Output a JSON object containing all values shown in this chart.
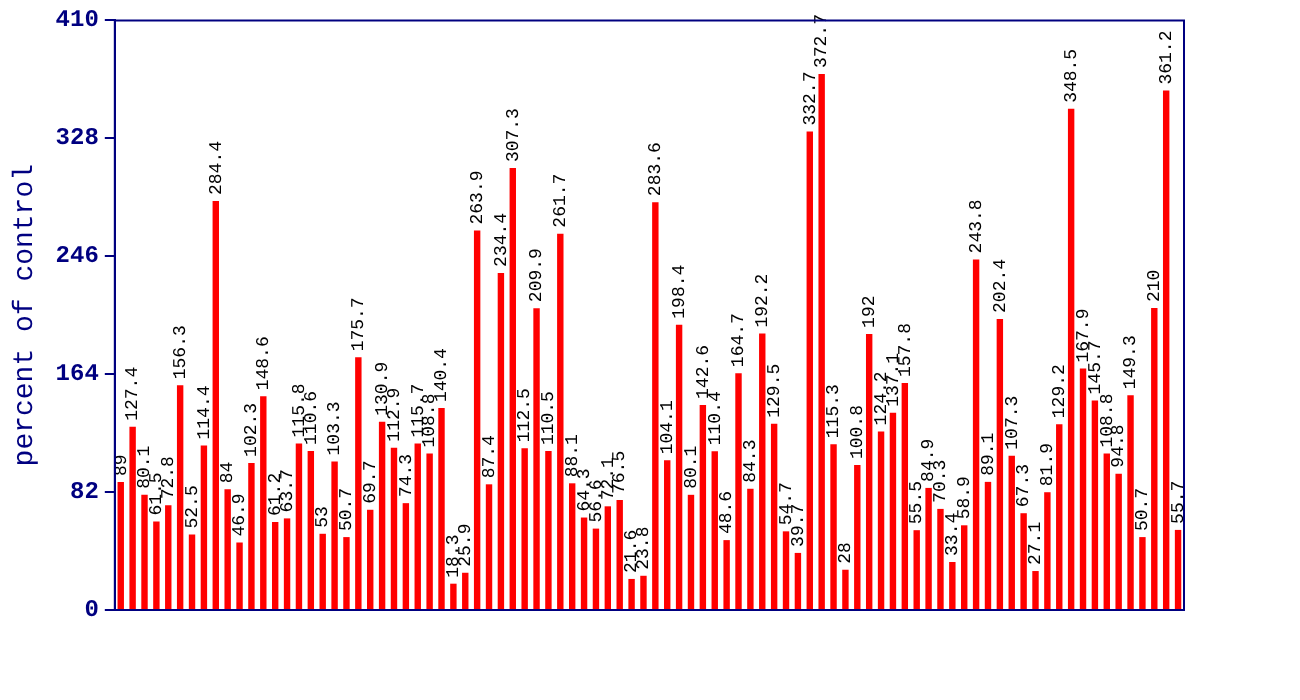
{
  "chart_data": {
    "type": "bar",
    "ylabel": "percent of control",
    "categories": [
      null,
      null,
      null,
      null,
      null,
      null,
      null,
      null,
      null,
      null,
      null,
      null,
      null,
      null,
      null,
      null,
      null,
      null,
      null,
      null,
      null,
      null,
      null,
      null,
      null,
      null,
      null,
      null,
      null,
      null,
      null,
      null,
      null,
      null,
      null,
      null,
      null,
      null,
      null,
      null,
      null,
      null,
      null,
      null,
      null,
      null,
      null,
      null,
      null,
      null,
      null,
      null,
      null,
      null,
      null,
      null,
      null,
      null,
      null,
      null,
      null,
      null,
      null,
      null,
      null,
      null,
      null,
      null,
      null,
      null,
      null,
      null,
      null,
      null,
      null,
      null,
      null,
      null,
      null,
      null,
      null,
      null,
      null,
      null,
      null,
      null,
      null,
      null,
      null,
      null
    ],
    "values": [
      89,
      127.4,
      80.1,
      61.5,
      72.8,
      156.3,
      52.5,
      114.4,
      284.4,
      84,
      46.9,
      102.3,
      148.6,
      61.2,
      63.7,
      115.8,
      110.6,
      53,
      103.3,
      50.7,
      175.7,
      69.7,
      130.9,
      112.9,
      74.3,
      115.7,
      108.8,
      140.4,
      18.3,
      25.9,
      263.9,
      87.4,
      234.4,
      307.3,
      112.5,
      209.9,
      110.5,
      261.7,
      88.1,
      64.3,
      56.6,
      72.1,
      76.5,
      21.6,
      23.8,
      283.6,
      104.1,
      198.4,
      80.1,
      142.6,
      110.4,
      48.6,
      164.7,
      84.3,
      192.2,
      129.5,
      54.7,
      39.7,
      332.7,
      372.7,
      115.3,
      28,
      100.8,
      192,
      124.2,
      137.1,
      157.8,
      55.5,
      84.9,
      70.3,
      33.4,
      58.9,
      243.8,
      89.1,
      202.4,
      107.3,
      67.3,
      27.1,
      81.9,
      129.2,
      348.5,
      167.9,
      145.7,
      108.8,
      94.8,
      149.3,
      50.7,
      210,
      361.2,
      55.7
    ],
    "color": "#ff0000",
    "ylim": [
      0,
      410
    ],
    "yticks": [
      0,
      82,
      164,
      246,
      328,
      410
    ],
    "grid": false,
    "legend": false,
    "data_labels": true
  }
}
